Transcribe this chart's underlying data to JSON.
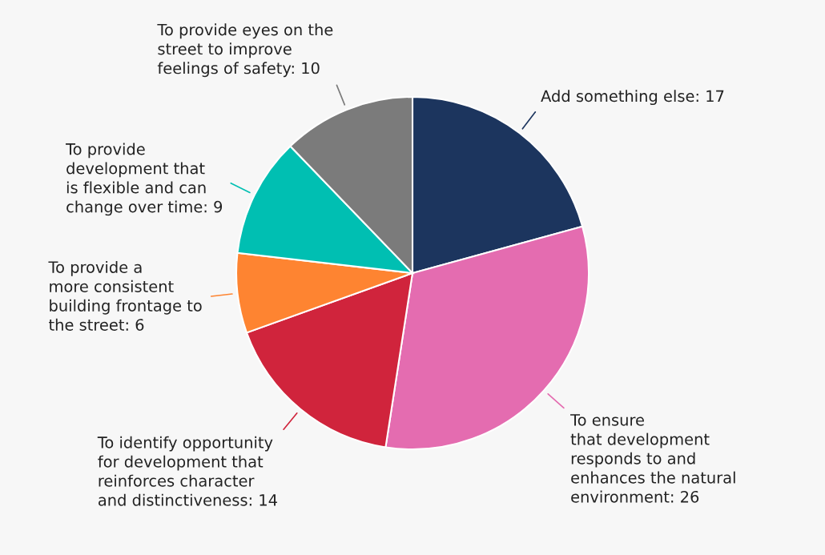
{
  "chart_data": {
    "type": "pie",
    "categories": [
      "Add something else: 17",
      "To ensure\nthat development\nresponds to and\nenhances the natural\nenvironment: 26",
      "To identify opportunity\nfor development that\nreinforces character\nand distinctiveness: 14",
      "To provide a\nmore consistent\nbuilding frontage to\nthe street: 6",
      "To provide\ndevelopment that\nis flexible and can\nchange over time: 9",
      "To provide eyes on the\nstreet to improve\nfeelings of safety: 10"
    ],
    "values": [
      17,
      26,
      14,
      6,
      9,
      10
    ],
    "colors": [
      "#1c355e",
      "#e46cb0",
      "#d0243c",
      "#fe8431",
      "#00bfb2",
      "#7b7b7b"
    ]
  }
}
